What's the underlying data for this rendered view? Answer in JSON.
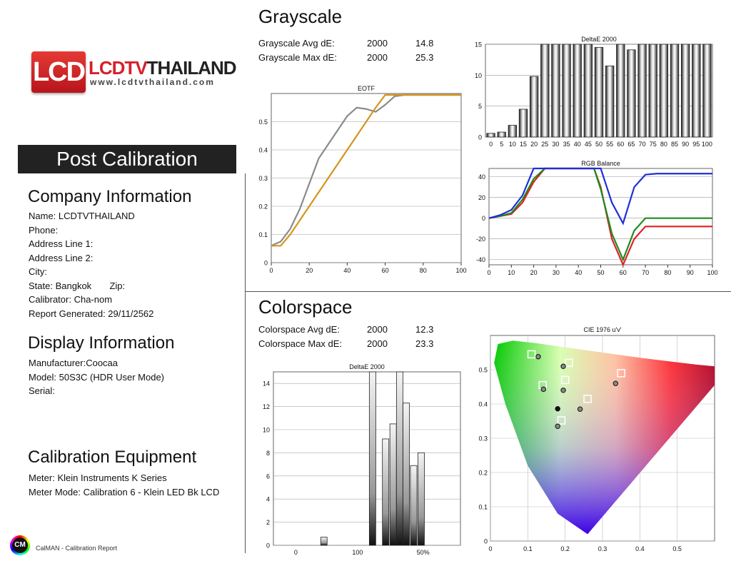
{
  "logo": {
    "badge": "LCD",
    "name_part1": "LCDTV",
    "name_part2": "THAILAND",
    "url": "www.lcdtvthailand.com"
  },
  "banner": "Post Calibration",
  "company": {
    "heading": "Company Information",
    "lines": [
      "Name: LCDTVTHAILAND",
      "Phone:",
      "Address Line 1:",
      "Address Line 2:",
      "City:",
      "State: Bangkok       Zip:",
      "Calibrator: Cha-nom",
      "Report Generated: 29/11/2562"
    ]
  },
  "display": {
    "heading": "Display Information",
    "lines": [
      "Manufacturer:Coocaa",
      "Model: 50S3C (HDR User Mode)",
      "Serial:"
    ]
  },
  "equipment": {
    "heading": "Calibration Equipment",
    "lines": [
      "Meter: Klein Instruments K Series",
      "Meter Mode: Calibration 6 - Klein LED Bk LCD"
    ]
  },
  "footer": {
    "logo": "CM",
    "text": "CalMAN - Calibration Report"
  },
  "grayscale": {
    "title": "Grayscale",
    "rows": [
      {
        "label": "Grayscale Avg dE:",
        "std": "2000",
        "val": "14.8"
      },
      {
        "label": "Grayscale Max dE:",
        "std": "2000",
        "val": "25.3"
      }
    ]
  },
  "colorspace": {
    "title": "Colorspace",
    "rows": [
      {
        "label": "Colorspace Avg dE:",
        "std": "2000",
        "val": "12.3"
      },
      {
        "label": "Colorspace Max dE:",
        "std": "2000",
        "val": "23.3"
      }
    ]
  },
  "chart_data": [
    {
      "id": "eotf",
      "type": "line",
      "title": "EOTF",
      "xlim": [
        0,
        100
      ],
      "ylim": [
        0,
        0.6
      ],
      "xticks": [
        "0",
        "20",
        "40",
        "60",
        "80",
        "100"
      ],
      "yticks": [
        "0",
        "0.1",
        "0.2",
        "0.3",
        "0.4",
        "0.5"
      ],
      "series": [
        {
          "color": "#8a8a8a",
          "x": [
            0,
            5,
            10,
            15,
            20,
            25,
            30,
            35,
            40,
            45,
            50,
            55,
            60,
            65,
            70,
            100
          ],
          "y": [
            0.06,
            0.075,
            0.12,
            0.19,
            0.28,
            0.37,
            0.42,
            0.47,
            0.52,
            0.55,
            0.545,
            0.535,
            0.56,
            0.59,
            0.595,
            0.595
          ]
        },
        {
          "color": "#d4951a",
          "x": [
            0,
            5,
            10,
            15,
            20,
            25,
            30,
            35,
            40,
            45,
            50,
            55,
            60,
            65,
            70,
            100
          ],
          "y": [
            0.06,
            0.06,
            0.1,
            0.15,
            0.2,
            0.25,
            0.3,
            0.35,
            0.4,
            0.45,
            0.5,
            0.55,
            0.595,
            0.595,
            0.595,
            0.595
          ]
        }
      ]
    },
    {
      "id": "grayscale_de",
      "type": "bar",
      "title": "DeltaE 2000",
      "ylim": [
        0,
        15
      ],
      "yticks": [
        "0",
        "5",
        "10",
        "15"
      ],
      "categories": [
        "0",
        "5",
        "10",
        "15",
        "20",
        "25",
        "30",
        "35",
        "40",
        "45",
        "50",
        "55",
        "60",
        "65",
        "70",
        "75",
        "80",
        "85",
        "90",
        "95",
        "100"
      ],
      "values": [
        0.6,
        0.8,
        1.9,
        4.5,
        9.8,
        15,
        15,
        15,
        15,
        15,
        14.5,
        11.5,
        15,
        14.1,
        15,
        15,
        15,
        15,
        15,
        15,
        15
      ]
    },
    {
      "id": "rgb_balance",
      "type": "line",
      "title": "RGB Balance",
      "xlim": [
        0,
        100
      ],
      "ylim": [
        -45,
        48
      ],
      "xticks": [
        "0",
        "10",
        "20",
        "30",
        "40",
        "50",
        "60",
        "70",
        "80",
        "90",
        "100"
      ],
      "yticks": [
        "-40",
        "-20",
        "0",
        "20",
        "40"
      ],
      "series": [
        {
          "color": "#e02020",
          "x": [
            0,
            5,
            10,
            15,
            20,
            25,
            30,
            35,
            40,
            45,
            47,
            50,
            55,
            60,
            65,
            70,
            75,
            80,
            90,
            100
          ],
          "y": [
            0,
            2,
            4,
            15,
            35,
            48,
            48,
            48,
            48,
            48,
            48,
            30,
            -20,
            -50,
            -20,
            -8,
            -8,
            -8,
            -8,
            -8
          ]
        },
        {
          "color": "#1e8a1e",
          "x": [
            0,
            5,
            10,
            15,
            20,
            25,
            30,
            35,
            40,
            45,
            47,
            50,
            55,
            60,
            65,
            70,
            75,
            80,
            90,
            100
          ],
          "y": [
            0,
            2,
            5,
            18,
            38,
            48,
            48,
            48,
            48,
            48,
            48,
            28,
            -15,
            -40,
            -12,
            0,
            0,
            0,
            0,
            0
          ]
        },
        {
          "color": "#1e2fd8",
          "x": [
            0,
            5,
            10,
            15,
            20,
            25,
            30,
            35,
            40,
            45,
            47,
            50,
            55,
            60,
            65,
            70,
            75,
            80,
            90,
            100
          ],
          "y": [
            0,
            3,
            8,
            22,
            48,
            48,
            48,
            48,
            48,
            48,
            48,
            48,
            15,
            -5,
            30,
            42,
            43,
            43,
            43,
            43
          ]
        }
      ]
    },
    {
      "id": "colorspace_de",
      "type": "bar",
      "title": "DeltaE 2000",
      "ylim": [
        0,
        15
      ],
      "yticks": [
        "0",
        "2",
        "4",
        "6",
        "8",
        "10",
        "12",
        "14"
      ],
      "xticks": [
        "0",
        "100",
        "50%"
      ],
      "bars": [
        {
          "x": 27,
          "value": 0.7
        },
        {
          "x": 53,
          "value": 15
        },
        {
          "x": 60,
          "value": 9.2
        },
        {
          "x": 64,
          "value": 10.5
        },
        {
          "x": 67.5,
          "value": 15
        },
        {
          "x": 71,
          "value": 12.3
        },
        {
          "x": 75,
          "value": 6.9
        },
        {
          "x": 79,
          "value": 8.0
        }
      ]
    },
    {
      "id": "cie",
      "type": "scatter",
      "title": "CIE 1976 u'v'",
      "xlim": [
        0,
        0.6
      ],
      "ylim": [
        0,
        0.6
      ],
      "xticks": [
        "0",
        "0.1",
        "0.2",
        "0.3",
        "0.4",
        "0.5"
      ],
      "yticks": [
        "0",
        "0.1",
        "0.2",
        "0.3",
        "0.4",
        "0.5"
      ],
      "targets": [
        [
          0.11,
          0.545
        ],
        [
          0.21,
          0.52
        ],
        [
          0.35,
          0.49
        ],
        [
          0.14,
          0.455
        ],
        [
          0.2,
          0.47
        ],
        [
          0.26,
          0.415
        ],
        [
          0.19,
          0.352
        ]
      ],
      "measured": [
        [
          0.128,
          0.538
        ],
        [
          0.195,
          0.51
        ],
        [
          0.335,
          0.46
        ],
        [
          0.142,
          0.443
        ],
        [
          0.195,
          0.44
        ],
        [
          0.18,
          0.386
        ],
        [
          0.24,
          0.385
        ],
        [
          0.18,
          0.335
        ]
      ],
      "white_point": [
        0.18,
        0.386
      ]
    }
  ]
}
